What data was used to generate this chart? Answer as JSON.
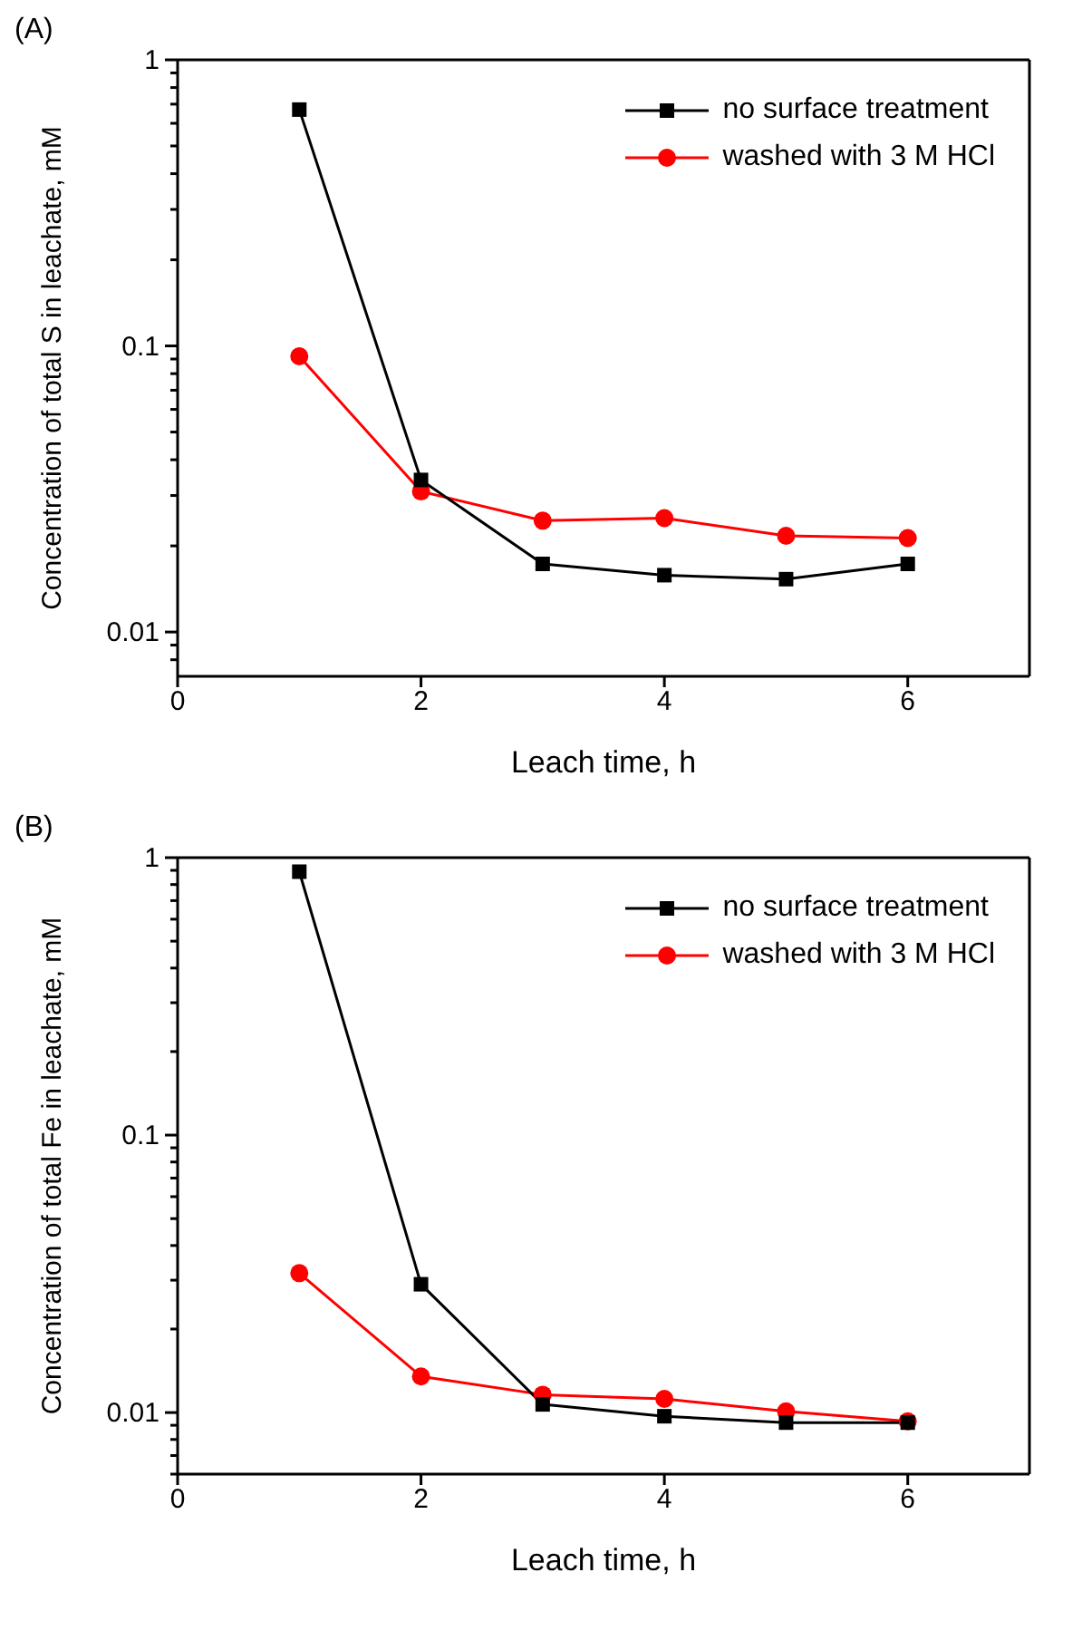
{
  "chart_data": [
    {
      "type": "line",
      "title": "(A)",
      "xlabel": "Leach time, h",
      "ylabel": "Concentration of total S  in leachate, mM",
      "x": [
        1,
        2,
        3,
        4,
        5,
        6
      ],
      "log": "y",
      "xlim": [
        0,
        7
      ],
      "xticks": [
        0,
        2,
        4,
        6
      ],
      "ylim": [
        0.007,
        1
      ],
      "yticks": [
        {
          "value": 0.008,
          "label": null
        },
        {
          "value": 0.009,
          "label": null
        },
        0.01,
        {
          "value": 0.02,
          "label": null
        },
        {
          "value": 0.03,
          "label": null
        },
        {
          "value": 0.04,
          "label": null
        },
        {
          "value": 0.05,
          "label": null
        },
        {
          "value": 0.06,
          "label": null
        },
        {
          "value": 0.07,
          "label": null
        },
        {
          "value": 0.08,
          "label": null
        },
        {
          "value": 0.09,
          "label": null
        },
        0.1,
        {
          "value": 0.2,
          "label": null
        },
        {
          "value": 0.3,
          "label": null
        },
        {
          "value": 0.4,
          "label": null
        },
        {
          "value": 0.5,
          "label": null
        },
        {
          "value": 0.6,
          "label": null
        },
        {
          "value": 0.7,
          "label": null
        },
        {
          "value": 0.8,
          "label": null
        },
        {
          "value": 0.9,
          "label": null
        },
        1
      ],
      "grid": false,
      "legend": "top right",
      "series": [
        {
          "name": "no surface treatment",
          "color": "#000000",
          "marker": "square",
          "values": [
            0.67,
            0.034,
            0.0173,
            0.0158,
            0.0153,
            0.0173
          ]
        },
        {
          "name": "washed with 3 M HCl",
          "color": "#ff0000",
          "marker": "circle",
          "values": [
            0.092,
            0.031,
            0.0245,
            0.025,
            0.0217,
            0.0213
          ]
        }
      ]
    },
    {
      "type": "line",
      "title": "(B)",
      "xlabel": "Leach time, h",
      "ylabel": "Concentration of total Fe  in leachate, mM",
      "x": [
        1,
        2,
        3,
        4,
        5,
        6
      ],
      "log": "y",
      "xlim": [
        0,
        7
      ],
      "xticks": [
        0,
        2,
        4,
        6
      ],
      "ylim": [
        0.006,
        1
      ],
      "yticks": [
        {
          "value": 0.006,
          "label": null
        },
        {
          "value": 0.007,
          "label": null
        },
        {
          "value": 0.008,
          "label": null
        },
        {
          "value": 0.009,
          "label": null
        },
        0.01,
        {
          "value": 0.02,
          "label": null
        },
        {
          "value": 0.03,
          "label": null
        },
        {
          "value": 0.04,
          "label": null
        },
        {
          "value": 0.05,
          "label": null
        },
        {
          "value": 0.06,
          "label": null
        },
        {
          "value": 0.07,
          "label": null
        },
        {
          "value": 0.08,
          "label": null
        },
        {
          "value": 0.09,
          "label": null
        },
        0.1,
        {
          "value": 0.2,
          "label": null
        },
        {
          "value": 0.3,
          "label": null
        },
        {
          "value": 0.4,
          "label": null
        },
        {
          "value": 0.5,
          "label": null
        },
        {
          "value": 0.6,
          "label": null
        },
        {
          "value": 0.7,
          "label": null
        },
        {
          "value": 0.8,
          "label": null
        },
        {
          "value": 0.9,
          "label": null
        },
        1
      ],
      "grid": false,
      "legend": "top right",
      "series": [
        {
          "name": "no surface treatment",
          "color": "#000000",
          "marker": "square",
          "values": [
            0.89,
            0.029,
            0.0107,
            0.0097,
            0.0092,
            0.0092
          ]
        },
        {
          "name": "washed with 3 M HCl",
          "color": "#ff0000",
          "marker": "circle",
          "values": [
            0.0318,
            0.0135,
            0.0116,
            0.0112,
            0.0101,
            0.0093
          ]
        }
      ]
    }
  ]
}
